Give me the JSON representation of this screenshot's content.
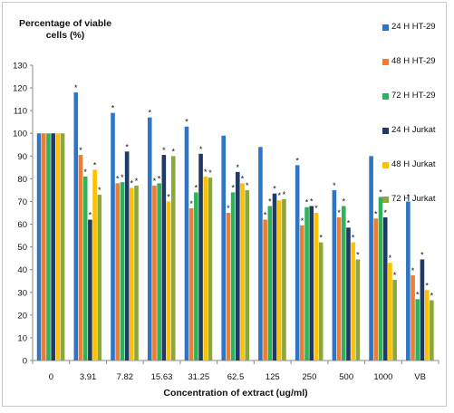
{
  "chart_data": {
    "type": "bar",
    "ylabel": "Percentage of viable cells (%)",
    "xlabel": "Concentration of extract (ug/ml)",
    "categories": [
      "0",
      "3.91",
      "7.82",
      "15.63",
      "31.25",
      "62.5",
      "125",
      "250",
      "500",
      "1000",
      "VB"
    ],
    "ylim": [
      0,
      130
    ],
    "yticks": [
      0,
      10,
      20,
      30,
      40,
      50,
      60,
      70,
      80,
      90,
      100,
      110,
      120,
      130
    ],
    "legend_position": "right",
    "grid": false,
    "significance_marker": "*",
    "series": [
      {
        "name": "24 H HT-29",
        "color": "#2E75C6",
        "values": [
          100,
          118,
          109,
          107,
          103,
          99,
          94,
          86,
          75,
          90,
          70
        ],
        "marked": [
          false,
          true,
          true,
          true,
          true,
          false,
          false,
          true,
          true,
          false,
          true
        ]
      },
      {
        "name": "48 H HT-29",
        "color": "#ED7D31",
        "values": [
          100,
          90.5,
          78,
          77,
          67,
          65,
          62,
          59.5,
          63,
          62.5,
          37.5
        ],
        "marked": [
          false,
          true,
          true,
          true,
          true,
          true,
          true,
          true,
          true,
          true,
          true
        ]
      },
      {
        "name": "72 H HT-29",
        "color": "#2EB35A",
        "values": [
          100,
          81,
          78.5,
          78,
          74,
          74,
          68,
          67.5,
          68,
          72,
          27
        ],
        "marked": [
          false,
          true,
          true,
          true,
          true,
          true,
          true,
          true,
          true,
          true,
          true
        ]
      },
      {
        "name": "24 H Jurkat",
        "color": "#1F3A64",
        "values": [
          100,
          62,
          92,
          90.5,
          91,
          83,
          73.5,
          68,
          58.5,
          63,
          44.5
        ],
        "marked": [
          false,
          true,
          true,
          true,
          true,
          true,
          true,
          true,
          true,
          true,
          true
        ]
      },
      {
        "name": "48 H Jurkat",
        "color": "#FFC000",
        "values": [
          100,
          84,
          76,
          70,
          81,
          78,
          70.5,
          65,
          52,
          43,
          31
        ],
        "marked": [
          false,
          true,
          true,
          true,
          true,
          true,
          true,
          true,
          true,
          true,
          true
        ]
      },
      {
        "name": "72 H Jurkat",
        "color": "#8BA83A",
        "values": [
          100,
          73,
          77,
          90,
          80.5,
          75,
          71,
          52,
          44.5,
          35.5,
          26.5
        ],
        "marked": [
          false,
          true,
          true,
          true,
          true,
          true,
          true,
          true,
          true,
          true,
          true
        ]
      }
    ]
  }
}
